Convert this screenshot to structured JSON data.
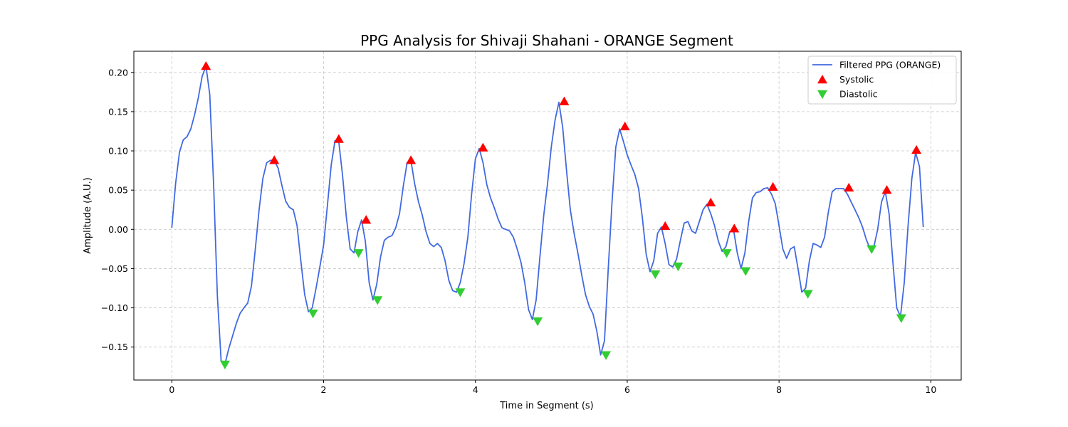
{
  "chart_data": {
    "type": "line",
    "title": "PPG Analysis for Shivaji Shahani - ORANGE Segment",
    "xlabel": "Time in Segment (s)",
    "ylabel": "Amplitude (A.U.)",
    "xlim": [
      -0.5,
      10.4
    ],
    "ylim": [
      -0.192,
      0.227
    ],
    "xticks": [
      0,
      2,
      4,
      6,
      8,
      10
    ],
    "xtick_labels": [
      "0",
      "2",
      "4",
      "6",
      "8",
      "10"
    ],
    "yticks": [
      -0.15,
      -0.1,
      -0.05,
      0.0,
      0.05,
      0.1,
      0.15,
      0.2
    ],
    "ytick_labels": [
      "−0.15",
      "−0.10",
      "−0.05",
      "0.00",
      "0.05",
      "0.10",
      "0.15",
      "0.20"
    ],
    "grid": true,
    "legend_position": "top-right",
    "colors": {
      "line": "#4169e1",
      "systolic": "#ff0000",
      "diastolic": "#32cd32"
    },
    "series": [
      {
        "name": "Filtered PPG (ORANGE)",
        "kind": "line",
        "x": [
          0,
          0.05,
          0.1,
          0.15,
          0.2,
          0.25,
          0.3,
          0.35,
          0.4,
          0.45,
          0.5,
          0.55,
          0.6,
          0.65,
          0.7,
          0.75,
          0.8,
          0.85,
          0.9,
          0.95,
          1.0,
          1.05,
          1.1,
          1.15,
          1.2,
          1.25,
          1.3,
          1.35,
          1.4,
          1.45,
          1.5,
          1.55,
          1.6,
          1.65,
          1.7,
          1.75,
          1.8,
          1.85,
          1.9,
          1.95,
          2.0,
          2.05,
          2.1,
          2.15,
          2.2,
          2.25,
          2.3,
          2.35,
          2.4,
          2.45,
          2.5,
          2.55,
          2.6,
          2.65,
          2.7,
          2.75,
          2.8,
          2.85,
          2.9,
          2.95,
          3.0,
          3.05,
          3.1,
          3.15,
          3.2,
          3.25,
          3.3,
          3.35,
          3.4,
          3.45,
          3.5,
          3.55,
          3.6,
          3.65,
          3.7,
          3.75,
          3.8,
          3.85,
          3.9,
          3.95,
          4.0,
          4.05,
          4.1,
          4.15,
          4.2,
          4.25,
          4.3,
          4.35,
          4.4,
          4.45,
          4.5,
          4.55,
          4.6,
          4.65,
          4.7,
          4.75,
          4.8,
          4.85,
          4.9,
          4.95,
          5.0,
          5.05,
          5.1,
          5.15,
          5.2,
          5.25,
          5.3,
          5.35,
          5.4,
          5.45,
          5.5,
          5.55,
          5.6,
          5.65,
          5.7,
          5.75,
          5.8,
          5.85,
          5.9,
          5.95,
          6.0,
          6.05,
          6.1,
          6.15,
          6.2,
          6.25,
          6.3,
          6.35,
          6.4,
          6.45,
          6.5,
          6.55,
          6.6,
          6.65,
          6.7,
          6.75,
          6.8,
          6.85,
          6.9,
          6.95,
          7.0,
          7.05,
          7.1,
          7.15,
          7.2,
          7.25,
          7.3,
          7.35,
          7.4,
          7.45,
          7.5,
          7.55,
          7.6,
          7.65,
          7.7,
          7.75,
          7.8,
          7.85,
          7.9,
          7.95,
          8.0,
          8.05,
          8.1,
          8.15,
          8.2,
          8.25,
          8.3,
          8.35,
          8.4,
          8.45,
          8.5,
          8.55,
          8.6,
          8.65,
          8.7,
          8.75,
          8.8,
          8.85,
          8.9,
          8.95,
          9.0,
          9.05,
          9.1,
          9.15,
          9.2,
          9.25,
          9.3,
          9.35,
          9.4,
          9.45,
          9.5,
          9.55,
          9.6,
          9.65,
          9.7,
          9.75,
          9.8,
          9.85,
          9.9
        ],
        "y": [
          0.002,
          0.058,
          0.098,
          0.114,
          0.118,
          0.128,
          0.146,
          0.168,
          0.195,
          0.208,
          0.172,
          0.06,
          -0.085,
          -0.168,
          -0.172,
          -0.152,
          -0.136,
          -0.12,
          -0.107,
          -0.1,
          -0.094,
          -0.072,
          -0.025,
          0.025,
          0.065,
          0.085,
          0.088,
          0.088,
          0.078,
          0.056,
          0.036,
          0.028,
          0.025,
          0.005,
          -0.04,
          -0.083,
          -0.105,
          -0.1,
          -0.075,
          -0.048,
          -0.02,
          0.03,
          0.082,
          0.113,
          0.112,
          0.068,
          0.015,
          -0.025,
          -0.03,
          -0.003,
          0.012,
          -0.015,
          -0.068,
          -0.09,
          -0.07,
          -0.035,
          -0.014,
          -0.01,
          -0.008,
          0.002,
          0.02,
          0.055,
          0.085,
          0.088,
          0.058,
          0.035,
          0.018,
          -0.003,
          -0.018,
          -0.022,
          -0.018,
          -0.023,
          -0.04,
          -0.065,
          -0.078,
          -0.08,
          -0.068,
          -0.044,
          -0.01,
          0.045,
          0.09,
          0.103,
          0.085,
          0.057,
          0.04,
          0.027,
          0.013,
          0.002,
          0.0,
          -0.002,
          -0.01,
          -0.025,
          -0.042,
          -0.068,
          -0.102,
          -0.115,
          -0.09,
          -0.035,
          0.018,
          0.058,
          0.105,
          0.14,
          0.162,
          0.13,
          0.075,
          0.025,
          -0.005,
          -0.03,
          -0.058,
          -0.083,
          -0.098,
          -0.108,
          -0.13,
          -0.16,
          -0.142,
          -0.05,
          0.035,
          0.105,
          0.128,
          0.112,
          0.095,
          0.082,
          0.07,
          0.052,
          0.014,
          -0.032,
          -0.054,
          -0.04,
          -0.005,
          0.003,
          -0.018,
          -0.045,
          -0.048,
          -0.038,
          -0.014,
          0.008,
          0.01,
          -0.002,
          -0.005,
          0.01,
          0.025,
          0.032,
          0.02,
          0.005,
          -0.015,
          -0.028,
          -0.022,
          -0.003,
          0.0,
          -0.03,
          -0.05,
          -0.03,
          0.01,
          0.04,
          0.047,
          0.048,
          0.052,
          0.053,
          0.045,
          0.033,
          0.005,
          -0.025,
          -0.037,
          -0.025,
          -0.022,
          -0.05,
          -0.08,
          -0.075,
          -0.04,
          -0.018,
          -0.02,
          -0.023,
          -0.01,
          0.022,
          0.048,
          0.052,
          0.052,
          0.052,
          0.045,
          0.035,
          0.025,
          0.015,
          0.003,
          -0.013,
          -0.025,
          -0.022,
          0.0,
          0.035,
          0.048,
          0.02,
          -0.042,
          -0.1,
          -0.111,
          -0.068,
          0.005,
          0.065,
          0.098,
          0.08,
          0.003
        ]
      },
      {
        "name": "Systolic",
        "kind": "marker-up",
        "x": [
          0.45,
          1.35,
          2.2,
          2.56,
          3.15,
          4.1,
          5.17,
          5.97,
          6.5,
          7.1,
          7.41,
          7.92,
          8.92,
          9.42,
          9.81
        ],
        "y": [
          0.208,
          0.088,
          0.115,
          0.012,
          0.088,
          0.104,
          0.163,
          0.131,
          0.004,
          0.034,
          0.001,
          0.054,
          0.053,
          0.05,
          0.101
        ]
      },
      {
        "name": "Diastolic",
        "kind": "marker-down",
        "x": [
          0.7,
          1.86,
          2.46,
          2.71,
          3.8,
          4.82,
          5.72,
          6.37,
          6.67,
          7.31,
          7.56,
          8.38,
          9.22,
          9.61
        ],
        "y": [
          -0.172,
          -0.107,
          -0.03,
          -0.09,
          -0.08,
          -0.117,
          -0.16,
          -0.057,
          -0.047,
          -0.03,
          -0.053,
          -0.082,
          -0.025,
          -0.113
        ]
      }
    ]
  }
}
